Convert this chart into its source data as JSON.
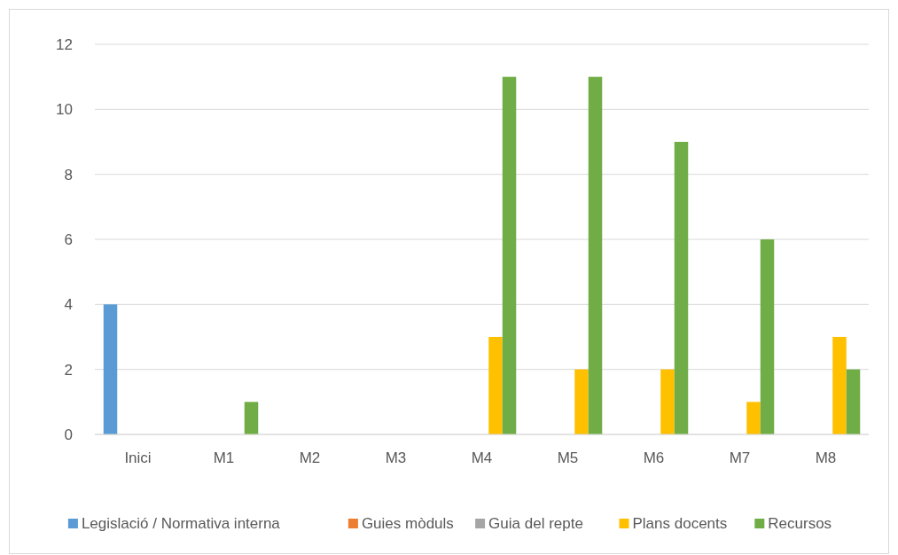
{
  "chart_data": {
    "type": "bar",
    "categories": [
      "Inici",
      "M1",
      "M2",
      "M3",
      "M4",
      "M5",
      "M6",
      "M7",
      "M8"
    ],
    "series": [
      {
        "name": "Legislació / Normativa interna",
        "color": "#5b9bd5",
        "values": [
          4,
          0,
          0,
          0,
          0,
          0,
          0,
          0,
          0
        ]
      },
      {
        "name": "Guies mòduls",
        "color": "#ed7d31",
        "values": [
          0,
          0,
          0,
          0,
          0,
          0,
          0,
          0,
          0
        ]
      },
      {
        "name": "Guia del repte",
        "color": "#a5a5a5",
        "values": [
          0,
          0,
          0,
          0,
          0,
          0,
          0,
          0,
          0
        ]
      },
      {
        "name": "Plans docents",
        "color": "#ffc000",
        "values": [
          0,
          0,
          0,
          0,
          3,
          2,
          2,
          1,
          3
        ]
      },
      {
        "name": "Recursos",
        "color": "#70ad47",
        "values": [
          0,
          1,
          0,
          0,
          11,
          11,
          9,
          6,
          2
        ]
      }
    ],
    "ylim": [
      0,
      12
    ],
    "yticks": [
      0,
      2,
      4,
      6,
      8,
      10,
      12
    ],
    "grid": "y",
    "legend": "bottom"
  }
}
